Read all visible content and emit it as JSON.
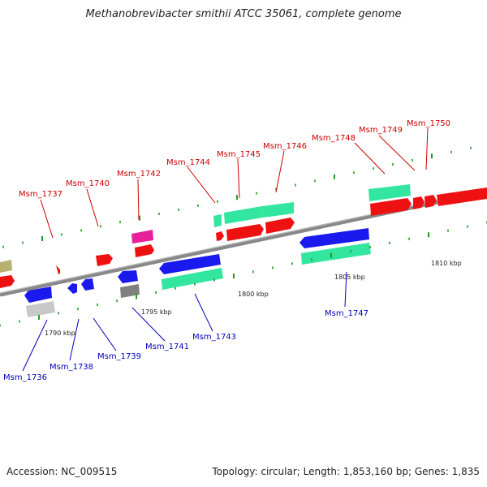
{
  "title": "Methanobrevibacter smithii ATCC 35061, complete genome",
  "footer": {
    "accession": "Accession: NC_009515",
    "summary": "Topology: circular; Length: 1,853,160 bp; Genes: 1,835"
  },
  "colors": {
    "forward_cds": "#ee1111",
    "reverse_cds": "#1a1aee",
    "rna": "#33e6a0",
    "pseudogene_pink": "#e8209a",
    "olive": "#b8b070",
    "grey": "#808080",
    "silver": "#c8c8c8",
    "tick": "#229922",
    "backbone": "#888888",
    "label_top": "#cc0000",
    "label_bottom": "#0000bb"
  },
  "scale_labels": [
    "1790 kbp",
    "1795 kbp",
    "1800 kbp",
    "1805 kbp",
    "1810 kbp"
  ],
  "gene_labels_top": [
    "Msm_1737",
    "Msm_1740",
    "Msm_1742",
    "Msm_1744",
    "Msm_1745",
    "Msm_1746",
    "Msm_1748",
    "Msm_1749",
    "Msm_1750"
  ],
  "gene_labels_bottom": [
    "Msm_1736",
    "Msm_1738",
    "Msm_1739",
    "Msm_1741",
    "Msm_1743",
    "Msm_1747"
  ]
}
